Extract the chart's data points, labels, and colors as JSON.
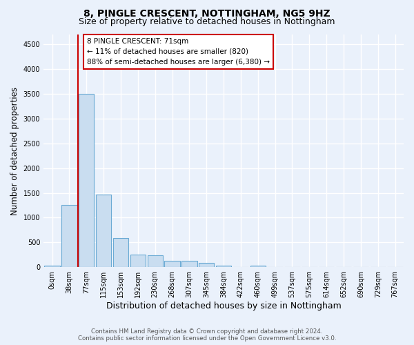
{
  "title_line1": "8, PINGLE CRESCENT, NOTTINGHAM, NG5 9HZ",
  "title_line2": "Size of property relative to detached houses in Nottingham",
  "xlabel": "Distribution of detached houses by size in Nottingham",
  "ylabel": "Number of detached properties",
  "bar_labels": [
    "0sqm",
    "38sqm",
    "77sqm",
    "115sqm",
    "153sqm",
    "192sqm",
    "230sqm",
    "268sqm",
    "307sqm",
    "345sqm",
    "384sqm",
    "422sqm",
    "460sqm",
    "499sqm",
    "537sqm",
    "575sqm",
    "614sqm",
    "652sqm",
    "690sqm",
    "729sqm",
    "767sqm"
  ],
  "bar_values": [
    30,
    1260,
    3500,
    1470,
    580,
    250,
    235,
    130,
    130,
    90,
    30,
    0,
    30,
    0,
    0,
    0,
    0,
    0,
    0,
    0,
    0
  ],
  "bar_color": "#c9ddf0",
  "bar_edge_color": "#6aaad4",
  "highlight_bar_index": 2,
  "property_line_x": 1.5,
  "annotation_box_text": "8 PINGLE CRESCENT: 71sqm\n← 11% of detached houses are smaller (820)\n88% of semi-detached houses are larger (6,380) →",
  "annotation_box_color": "#cc0000",
  "ylim": [
    0,
    4700
  ],
  "yticks": [
    0,
    500,
    1000,
    1500,
    2000,
    2500,
    3000,
    3500,
    4000,
    4500
  ],
  "footer_line1": "Contains HM Land Registry data © Crown copyright and database right 2024.",
  "footer_line2": "Contains public sector information licensed under the Open Government Licence v3.0.",
  "background_color": "#eaf1fb",
  "plot_bg_color": "#eaf1fb",
  "grid_color": "#ffffff",
  "title_fontsize": 10,
  "subtitle_fontsize": 9,
  "tick_fontsize": 7,
  "ylabel_fontsize": 8.5,
  "xlabel_fontsize": 9
}
